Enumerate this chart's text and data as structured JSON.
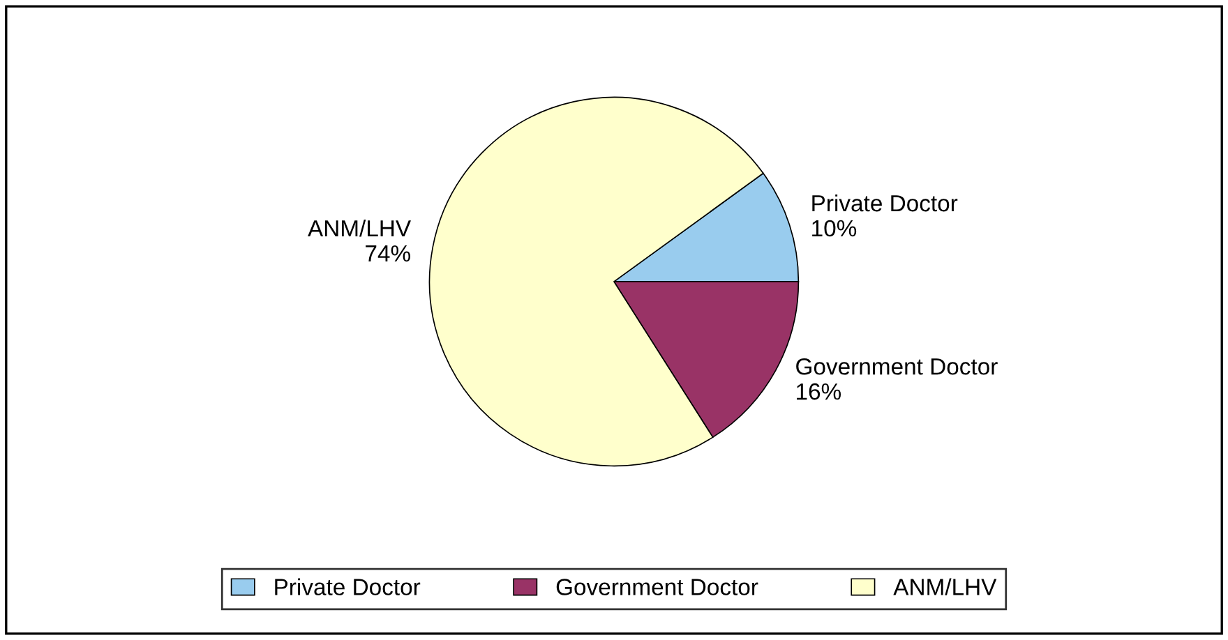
{
  "chart_data": {
    "type": "pie",
    "categories": [
      "Private Doctor",
      "Government Doctor",
      "ANM/LHV"
    ],
    "values": [
      10,
      16,
      74
    ],
    "value_labels": [
      "10%",
      "16%",
      "74%"
    ],
    "colors": [
      "#99ccee",
      "#993366",
      "#ffffcc"
    ],
    "legend": "bottom"
  }
}
